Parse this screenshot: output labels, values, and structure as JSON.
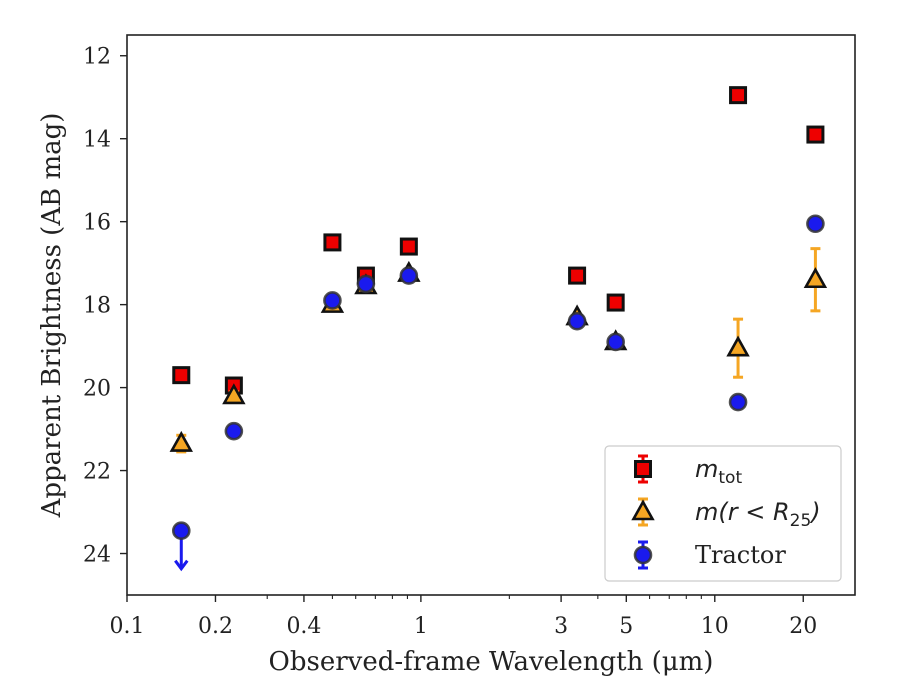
{
  "chart_data": {
    "type": "scatter",
    "xlabel": "Observed-frame Wavelength (μm)",
    "ylabel": "Apparent Brightness (AB mag)",
    "xscale": "log",
    "xlim": [
      0.1,
      30
    ],
    "ylim": [
      25,
      11.5
    ],
    "y_inverted": true,
    "x_ticks": [
      {
        "value": 0.1,
        "label": "0.1"
      },
      {
        "value": 0.2,
        "label": "0.2"
      },
      {
        "value": 0.4,
        "label": "0.4"
      },
      {
        "value": 1,
        "label": "1"
      },
      {
        "value": 3,
        "label": "3"
      },
      {
        "value": 5,
        "label": "5"
      },
      {
        "value": 10,
        "label": "10"
      },
      {
        "value": 20,
        "label": "20"
      }
    ],
    "y_ticks": [
      {
        "value": 12,
        "label": "12"
      },
      {
        "value": 14,
        "label": "14"
      },
      {
        "value": 16,
        "label": "16"
      },
      {
        "value": 18,
        "label": "18"
      },
      {
        "value": 20,
        "label": "20"
      },
      {
        "value": 22,
        "label": "22"
      },
      {
        "value": 24,
        "label": "24"
      }
    ],
    "grid": false,
    "legend_position": "bottom-right",
    "series": [
      {
        "name": "m_tot",
        "legend_base": "m",
        "legend_sub": "tot",
        "marker": "square",
        "face_color": "#ee0000",
        "edge_color": "#111111",
        "error_color": "#ee0000",
        "points": [
          {
            "x": 0.153,
            "y": 19.7,
            "err": 0.1
          },
          {
            "x": 0.231,
            "y": 19.95,
            "err": 0.1
          },
          {
            "x": 0.5,
            "y": 16.5,
            "err": 0.08
          },
          {
            "x": 0.65,
            "y": 17.3,
            "err": 0.08
          },
          {
            "x": 0.91,
            "y": 16.6,
            "err": 0.08
          },
          {
            "x": 3.4,
            "y": 17.3,
            "err": 0.08
          },
          {
            "x": 4.6,
            "y": 17.95,
            "err": 0.08
          },
          {
            "x": 12,
            "y": 12.95,
            "err": 0.08
          },
          {
            "x": 22,
            "y": 13.9,
            "err": 0.08
          }
        ]
      },
      {
        "name": "m(r < R_25)",
        "legend_base": "m(r < R",
        "legend_sub": "25",
        "legend_tail": ")",
        "marker": "triangle",
        "face_color": "#f5a623",
        "edge_color": "#111111",
        "error_color": "#f5a623",
        "points": [
          {
            "x": 0.153,
            "y": 21.35,
            "err": 0.2
          },
          {
            "x": 0.231,
            "y": 20.2,
            "err": 0.1
          },
          {
            "x": 0.5,
            "y": 18.0,
            "err": 0.05
          },
          {
            "x": 0.65,
            "y": 17.55,
            "err": 0.05
          },
          {
            "x": 0.91,
            "y": 17.25,
            "err": 0.05
          },
          {
            "x": 3.4,
            "y": 18.3,
            "err": 0.05
          },
          {
            "x": 4.6,
            "y": 18.9,
            "err": 0.05
          },
          {
            "x": 12,
            "y": 19.05,
            "err": 0.7
          },
          {
            "x": 22,
            "y": 17.4,
            "err": 0.75
          }
        ]
      },
      {
        "name": "Tractor",
        "legend_base": "Tractor",
        "marker": "circle",
        "face_color": "#1a1aee",
        "edge_color": "#333333",
        "error_color": "#1a1aee",
        "points": [
          {
            "x": 0.153,
            "y": 23.45,
            "err": 0,
            "upper_limit": true
          },
          {
            "x": 0.231,
            "y": 21.05,
            "err": 0.05
          },
          {
            "x": 0.5,
            "y": 17.9,
            "err": 0.05
          },
          {
            "x": 0.65,
            "y": 17.5,
            "err": 0.05
          },
          {
            "x": 0.91,
            "y": 17.3,
            "err": 0.05
          },
          {
            "x": 3.4,
            "y": 18.4,
            "err": 0.05
          },
          {
            "x": 4.6,
            "y": 18.9,
            "err": 0.05
          },
          {
            "x": 12,
            "y": 20.35,
            "err": 0.05
          },
          {
            "x": 22,
            "y": 16.05,
            "err": 0.05
          }
        ]
      }
    ]
  }
}
